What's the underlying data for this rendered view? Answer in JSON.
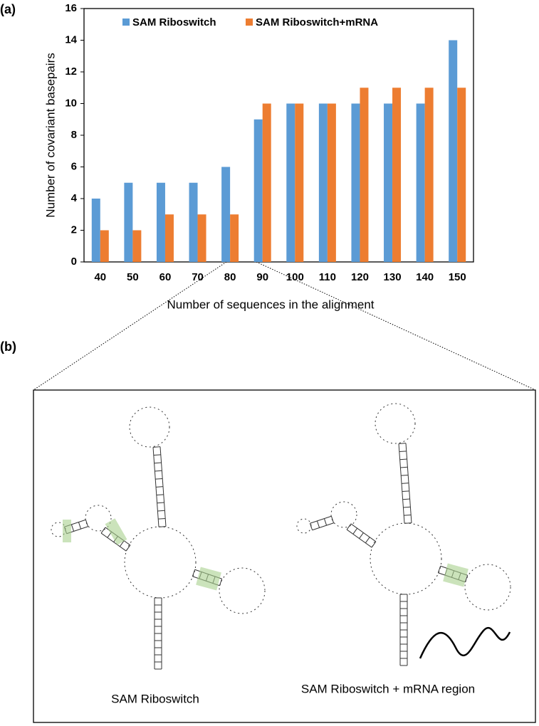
{
  "chart_data": {
    "type": "bar",
    "x_label": "Number of sequences in the alignment",
    "y_label": "Number of covariant basepairs",
    "categories": [
      "40",
      "50",
      "60",
      "70",
      "80",
      "90",
      "100",
      "110",
      "120",
      "130",
      "140",
      "150"
    ],
    "series": [
      {
        "name": "SAM Riboswitch",
        "color": "#5b9bd5",
        "values": [
          4,
          5,
          5,
          5,
          6,
          9,
          10,
          10,
          10,
          10,
          10,
          14
        ]
      },
      {
        "name": "SAM Riboswitch+mRNA",
        "color": "#ed7d31",
        "values": [
          2,
          2,
          3,
          3,
          3,
          10,
          10,
          10,
          11,
          11,
          11,
          11
        ]
      }
    ],
    "ylim": [
      0,
      16
    ],
    "yticks": [
      0,
      2,
      4,
      6,
      8,
      10,
      12,
      14,
      16
    ],
    "grid": false,
    "legend": "top"
  },
  "panel_labels": [
    "(a)",
    "(b)"
  ],
  "diagram": {
    "left_caption": "SAM Riboswitch",
    "right_caption": "SAM Riboswitch + mRNA region"
  }
}
